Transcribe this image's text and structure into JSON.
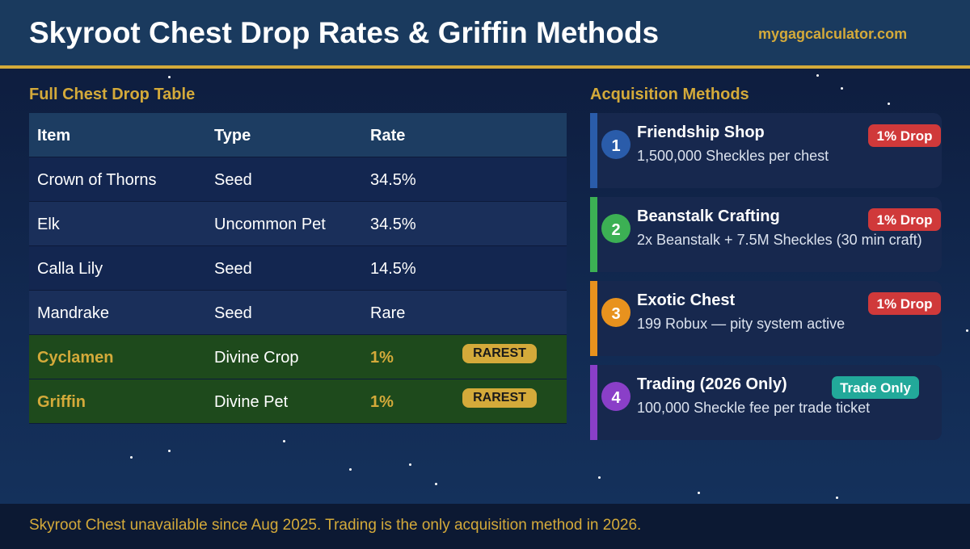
{
  "header": {
    "title": "Skyroot Chest Drop Rates & Griffin Methods",
    "site": "mygagcalculator.com"
  },
  "table": {
    "title": "Full Chest Drop Table",
    "columns": [
      "Item",
      "Type",
      "Rate"
    ],
    "rows": [
      {
        "item": "Crown of Thorns",
        "type": "Seed",
        "rate": "34.5%"
      },
      {
        "item": "Elk",
        "type": "Uncommon Pet",
        "rate": "34.5%"
      },
      {
        "item": "Calla Lily",
        "type": "Seed",
        "rate": "14.5%"
      },
      {
        "item": "Mandrake",
        "type": "Seed",
        "rate": "Rare"
      },
      {
        "item": "Cyclamen",
        "type": "Divine Crop",
        "rate": "1%",
        "tag": "RAREST"
      },
      {
        "item": "Griffin",
        "type": "Divine Pet",
        "rate": "1%",
        "tag": "RAREST"
      }
    ]
  },
  "methods": {
    "title": "Acquisition Methods",
    "items": [
      {
        "number": "1",
        "title": "Friendship Shop",
        "detail": "1,500,000 Sheckles per chest",
        "badge": "1% Drop"
      },
      {
        "number": "2",
        "title": "Beanstalk Crafting",
        "detail": "2x Beanstalk + 7.5M Sheckles (30 min craft)",
        "badge": "1% Drop"
      },
      {
        "number": "3",
        "title": "Exotic Chest",
        "detail": "199 Robux — pity system active",
        "badge": "1% Drop"
      },
      {
        "number": "4",
        "title": "Trading (2026 Only)",
        "detail": "100,000 Sheckle fee per trade ticket",
        "badge": "Trade Only"
      }
    ]
  },
  "footer": {
    "text": "Skyroot Chest unavailable since Aug 2025. Trading is the only acquisition method in 2026."
  }
}
